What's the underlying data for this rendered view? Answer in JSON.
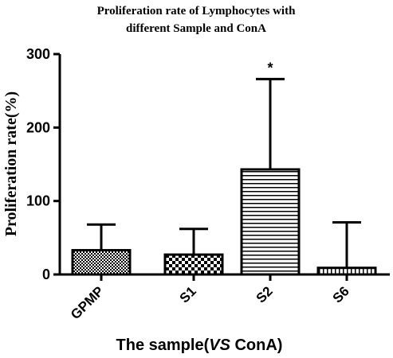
{
  "chart_data": {
    "type": "bar",
    "title_line1": "Proliferation rate of Lymphocytes with",
    "title_line2": "different Sample and ConA",
    "ylabel": "Proliferation rate(%)",
    "xlabel_prefix": "The sample(",
    "xlabel_italic": "VS",
    "xlabel_suffix": " ConA)",
    "categories": [
      "GPMP",
      "S1",
      "S2",
      "S6"
    ],
    "values": [
      33,
      27,
      143,
      9
    ],
    "error_upper": [
      68,
      62,
      266,
      71
    ],
    "patterns": [
      "fine-check",
      "checker",
      "horizontal-lines",
      "vertical-lines"
    ],
    "annotations": [
      {
        "category": "S2",
        "text": "*"
      }
    ],
    "ylim": [
      0,
      300
    ],
    "yticks": [
      0,
      100,
      200,
      300
    ],
    "grid": false,
    "legend": "none"
  }
}
